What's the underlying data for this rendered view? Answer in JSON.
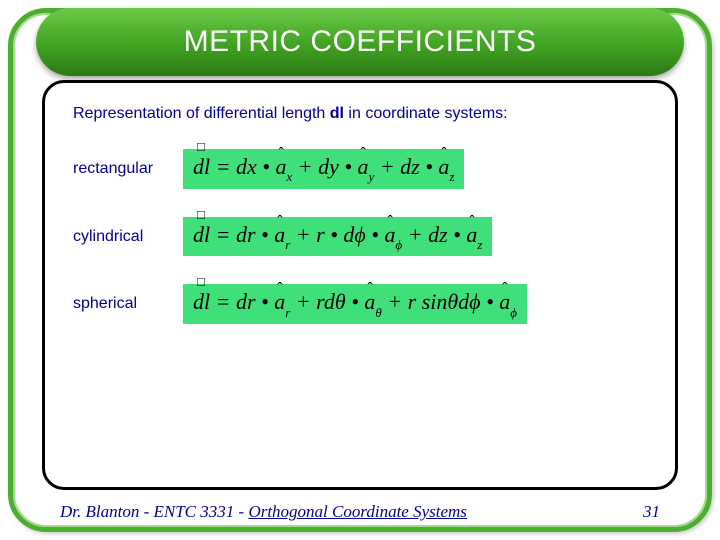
{
  "title": "METRIC COEFFICIENTS",
  "intro_pre": "Representation of differential length ",
  "intro_bold": "dl",
  "intro_post": "  in coordinate systems:",
  "rows": {
    "rect": {
      "label": "rectangular"
    },
    "cyl": {
      "label": "cylindrical"
    },
    "sph": {
      "label": "spherical"
    }
  },
  "footer": {
    "author": "Dr. Blanton  -  ENTC 3331  - ",
    "topic": "Orthogonal Coordinate Systems",
    "page": "31"
  },
  "colors": {
    "frame_green": "#4caf2f",
    "band_top": "#6bc948",
    "band_bottom": "#2d7a14",
    "eq_bg": "#3fe07a",
    "text_blue": "#000099"
  }
}
